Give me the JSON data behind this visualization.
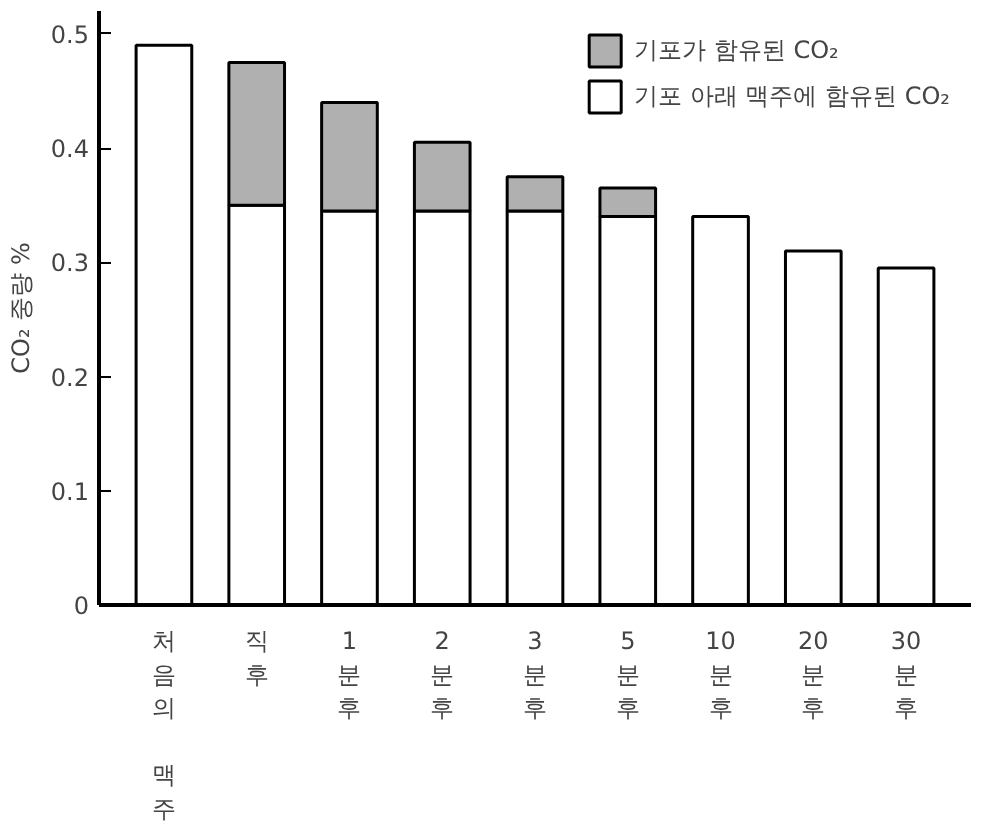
{
  "chart_data": {
    "type": "bar",
    "stacked": true,
    "ylabel": "CO₂ 중량 %",
    "categories": [
      "처음의 맥주",
      "직후",
      "1분후",
      "2분후",
      "3분후",
      "5분후",
      "10분후",
      "20분후",
      "30분후"
    ],
    "series": [
      {
        "name": "기포 아래 맥주에 함유된 CO₂",
        "color": "#ffffff",
        "values": [
          0.49,
          0.35,
          0.345,
          0.345,
          0.345,
          0.34,
          0.34,
          0.31,
          0.295
        ]
      },
      {
        "name": "기포가 함유된 CO₂",
        "color": "#b0b0b0",
        "values": [
          null,
          0.125,
          0.095,
          0.06,
          0.03,
          0.025,
          null,
          null,
          null
        ]
      }
    ],
    "ylim": [
      0,
      0.52
    ],
    "yticks": [
      0,
      0.1,
      0.2,
      0.3,
      0.4,
      0.5
    ],
    "grid": false,
    "legend": "top right"
  }
}
